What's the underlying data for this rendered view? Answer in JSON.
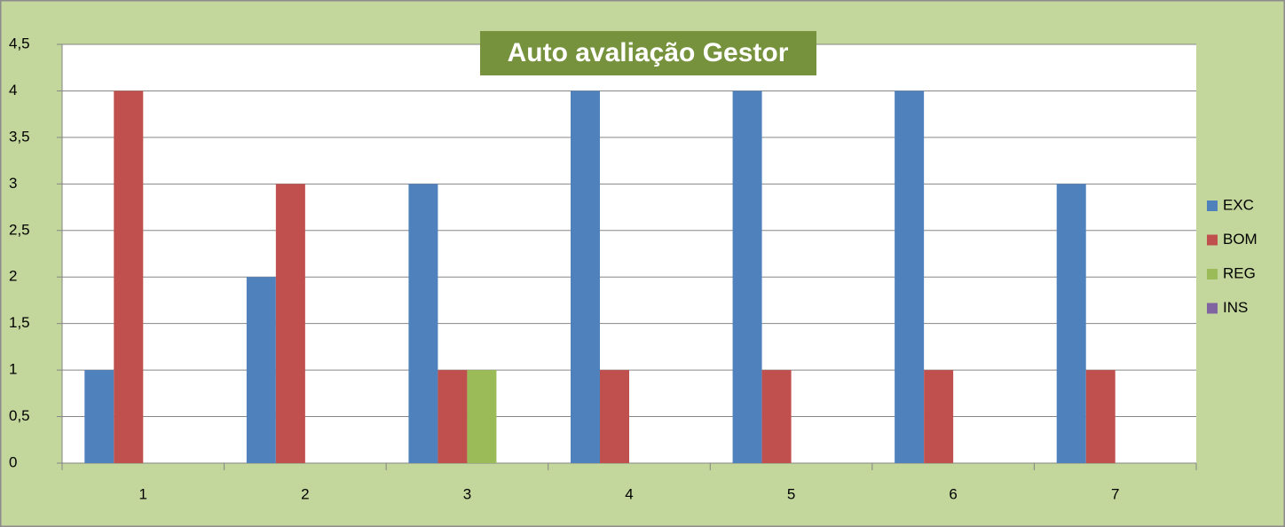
{
  "chart_data": {
    "type": "bar",
    "title": "Auto avaliação Gestor",
    "categories": [
      "1",
      "2",
      "3",
      "4",
      "5",
      "6",
      "7"
    ],
    "series": [
      {
        "name": "EXC",
        "color": "#4f81bd",
        "values": [
          1,
          2,
          3,
          4,
          4,
          4,
          3
        ]
      },
      {
        "name": "BOM",
        "color": "#c0504d",
        "values": [
          4,
          3,
          1,
          1,
          1,
          1,
          1
        ]
      },
      {
        "name": "REG",
        "color": "#9bbb59",
        "values": [
          0,
          0,
          1,
          0,
          0,
          0,
          0
        ]
      },
      {
        "name": "INS",
        "color": "#8064a2",
        "values": [
          0,
          0,
          0,
          0,
          0,
          0,
          0
        ]
      }
    ],
    "ylim": [
      0,
      4.5
    ],
    "yticks": [
      0,
      {
        "value": 0.5,
        "label": "0,5"
      },
      1,
      {
        "value": 1.5,
        "label": "1,5"
      },
      2,
      {
        "value": 2.5,
        "label": "2,5"
      },
      3,
      {
        "value": 3.5,
        "label": "3,5"
      },
      4,
      {
        "value": 4.5,
        "label": "4,5"
      }
    ],
    "grid": true,
    "legend": "right"
  }
}
